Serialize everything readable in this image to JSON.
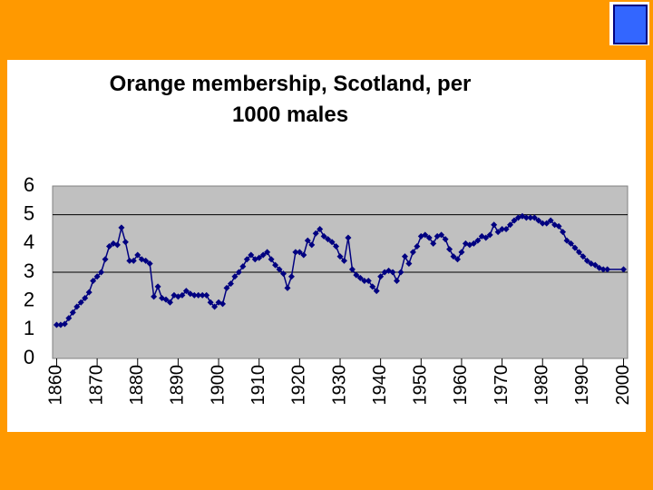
{
  "chart_data": {
    "type": "line",
    "title": "Orange membership, Scotland, per 1000 males",
    "x": [
      1860,
      1861,
      1862,
      1863,
      1864,
      1865,
      1866,
      1867,
      1868,
      1869,
      1870,
      1871,
      1872,
      1873,
      1874,
      1875,
      1876,
      1877,
      1878,
      1879,
      1880,
      1881,
      1882,
      1883,
      1884,
      1885,
      1886,
      1887,
      1888,
      1889,
      1890,
      1891,
      1892,
      1893,
      1894,
      1895,
      1896,
      1897,
      1898,
      1899,
      1900,
      1901,
      1902,
      1903,
      1904,
      1905,
      1906,
      1907,
      1908,
      1909,
      1910,
      1911,
      1912,
      1913,
      1914,
      1915,
      1916,
      1917,
      1918,
      1919,
      1920,
      1921,
      1922,
      1923,
      1924,
      1925,
      1926,
      1927,
      1928,
      1929,
      1930,
      1931,
      1932,
      1933,
      1934,
      1935,
      1936,
      1937,
      1938,
      1939,
      1940,
      1941,
      1942,
      1943,
      1944,
      1945,
      1946,
      1947,
      1948,
      1949,
      1950,
      1951,
      1952,
      1953,
      1954,
      1955,
      1956,
      1957,
      1958,
      1959,
      1960,
      1961,
      1962,
      1963,
      1964,
      1965,
      1966,
      1967,
      1968,
      1969,
      1970,
      1971,
      1972,
      1973,
      1974,
      1975,
      1976,
      1977,
      1978,
      1979,
      1980,
      1981,
      1982,
      1983,
      1984,
      1985,
      1986,
      1987,
      1988,
      1989,
      1990,
      1991,
      1992,
      1993,
      1994,
      1995,
      1996,
      2000
    ],
    "series": [
      {
        "name": "Orange membership",
        "color": "#000080",
        "values": [
          1.17,
          1.17,
          1.2,
          1.4,
          1.6,
          1.8,
          1.95,
          2.1,
          2.3,
          2.7,
          2.85,
          3.0,
          3.45,
          3.9,
          4.0,
          3.95,
          4.55,
          4.05,
          3.4,
          3.4,
          3.6,
          3.45,
          3.4,
          3.3,
          2.15,
          2.5,
          2.1,
          2.05,
          1.95,
          2.2,
          2.15,
          2.2,
          2.35,
          2.25,
          2.2,
          2.2,
          2.2,
          2.2,
          1.95,
          1.8,
          1.95,
          1.9,
          2.45,
          2.6,
          2.85,
          3.0,
          3.2,
          3.45,
          3.6,
          3.45,
          3.5,
          3.6,
          3.7,
          3.45,
          3.25,
          3.1,
          2.95,
          2.45,
          2.85,
          3.7,
          3.7,
          3.6,
          4.1,
          3.95,
          4.35,
          4.5,
          4.25,
          4.15,
          4.05,
          3.9,
          3.55,
          3.4,
          4.2,
          3.1,
          2.9,
          2.8,
          2.7,
          2.7,
          2.5,
          2.35,
          2.85,
          3.0,
          3.05,
          3.0,
          2.7,
          3.0,
          3.55,
          3.3,
          3.7,
          3.9,
          4.25,
          4.3,
          4.2,
          4.0,
          4.25,
          4.3,
          4.15,
          3.8,
          3.55,
          3.45,
          3.7,
          4.0,
          3.95,
          4.0,
          4.1,
          4.25,
          4.2,
          4.3,
          4.65,
          4.4,
          4.5,
          4.5,
          4.65,
          4.8,
          4.9,
          4.95,
          4.9,
          4.9,
          4.9,
          4.8,
          4.7,
          4.7,
          4.8,
          4.65,
          4.6,
          4.4,
          4.1,
          4.0,
          3.85,
          3.7,
          3.55,
          3.4,
          3.3,
          3.25,
          3.15,
          3.1,
          3.1,
          3.1
        ]
      }
    ],
    "xlim": [
      1859,
      2001
    ],
    "xticks": [
      1860,
      1870,
      1880,
      1890,
      1900,
      1910,
      1920,
      1930,
      1940,
      1950,
      1960,
      1970,
      1980,
      1990,
      2000
    ],
    "ylim": [
      0,
      6
    ],
    "yticks": [
      0,
      1,
      2,
      3,
      4,
      5,
      6
    ],
    "gridlines": [
      3,
      5
    ]
  }
}
